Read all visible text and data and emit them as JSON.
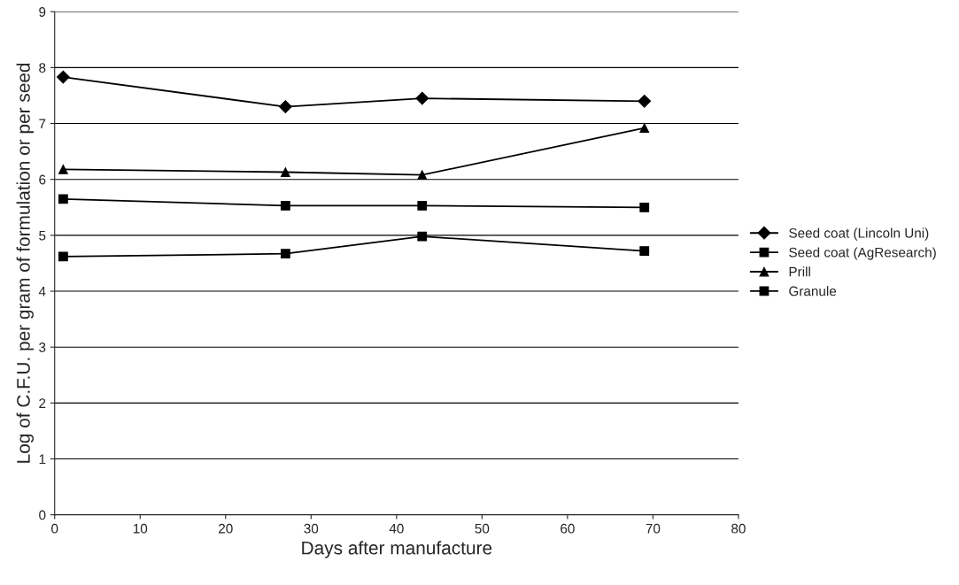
{
  "chart_data": {
    "type": "line",
    "xlabel": "Days after manufacture",
    "ylabel": "Log of C.F.U. per gram of formulation or per seed",
    "x": [
      1,
      27,
      43,
      69
    ],
    "series": [
      {
        "name": "Seed coat (Lincoln Uni)",
        "color": "#000000",
        "marker": "diamond",
        "values": [
          7.83,
          7.3,
          7.45,
          7.4
        ]
      },
      {
        "name": "Seed coat (AgResearch)",
        "color": "#000000",
        "marker": "square",
        "values": [
          4.62,
          4.67,
          4.98,
          4.72
        ]
      },
      {
        "name": "Prill",
        "color": "#000000",
        "marker": "triangle",
        "values": [
          6.18,
          6.13,
          6.08,
          6.92
        ]
      },
      {
        "name": "Granule",
        "color": "#000000",
        "marker": "square",
        "values": [
          5.65,
          5.53,
          5.53,
          5.5
        ]
      }
    ],
    "xlim": [
      0,
      80
    ],
    "xticks": [
      0,
      10,
      20,
      30,
      40,
      50,
      60,
      70,
      80
    ],
    "ylim": [
      0,
      9
    ],
    "yticks": [
      0,
      1,
      2,
      3,
      4,
      5,
      6,
      7,
      8,
      9
    ],
    "grid": "y",
    "legend": "right",
    "line_style": "solid"
  }
}
